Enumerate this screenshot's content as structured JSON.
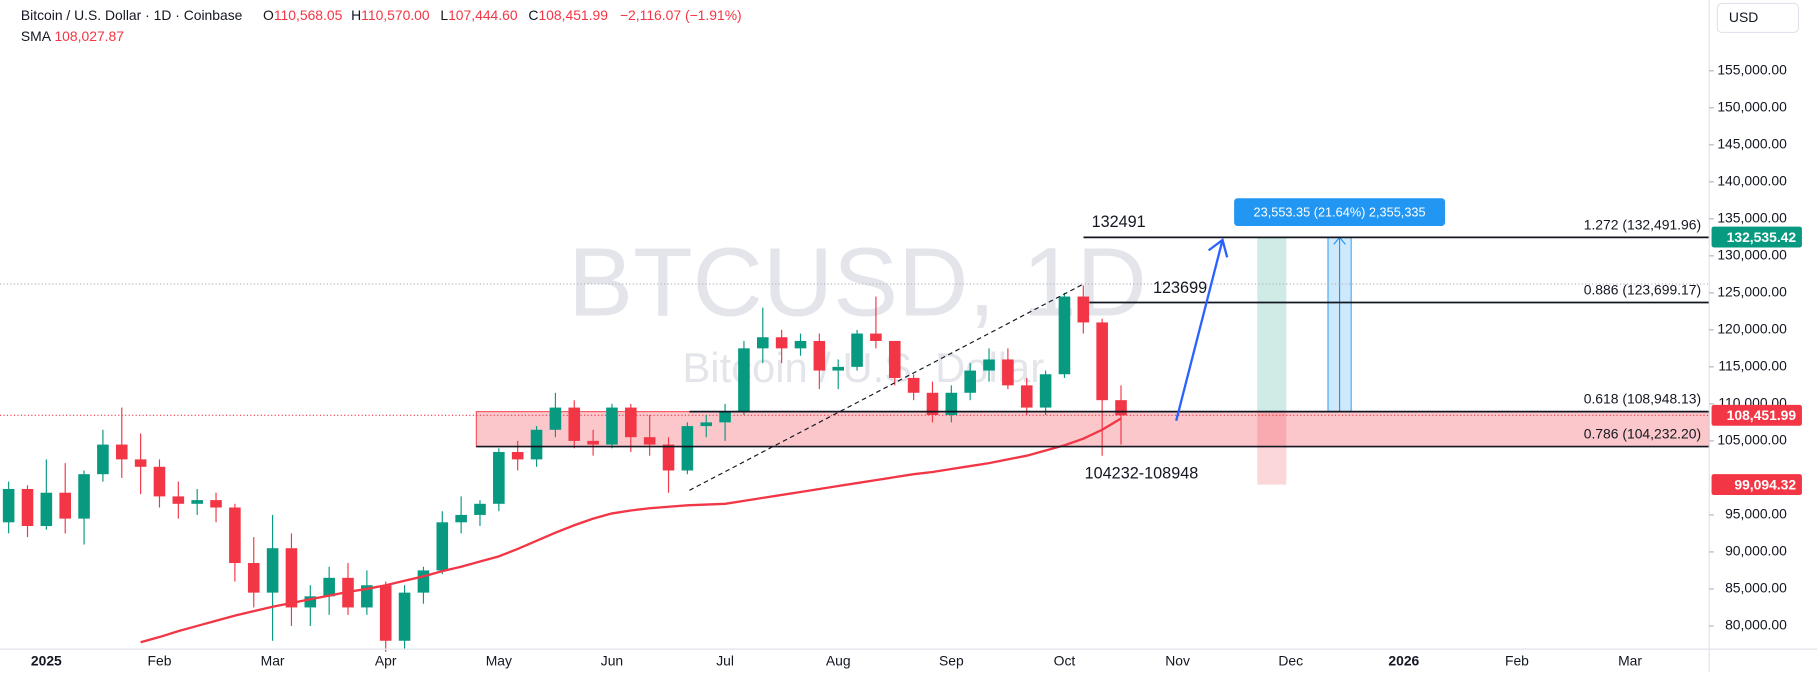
{
  "header": {
    "symbol": "Bitcoin / U.S. Dollar · 1D · Coinbase",
    "o_label": "O",
    "o_value": "110,568.05",
    "h_label": "H",
    "h_value": "110,570.00",
    "l_label": "L",
    "l_value": "107,444.60",
    "c_label": "C",
    "c_value": "108,451.99",
    "change": "−2,116.07 (−1.91%)",
    "sma_value": "108,027.87"
  },
  "currency_button": "USD",
  "watermark": {
    "symbol": "BTCUSD, 1D",
    "name": "Bitcoin / U.S. Dollar"
  },
  "annotations": {
    "target": "132491",
    "high": "123699",
    "zone": "104232-108948"
  },
  "measure": {
    "label": "23,553.35 (21.64%) 2,355,335"
  },
  "chart_data": {
    "type": "candlestick",
    "up_color": "#089981",
    "down_color": "#f23645",
    "categories": [
      null,
      null,
      "2025",
      null,
      null,
      null,
      null,
      null,
      "Feb",
      null,
      null,
      null,
      null,
      null,
      "Mar",
      null,
      null,
      null,
      null,
      null,
      "Apr",
      null,
      null,
      null,
      null,
      null,
      "May",
      null,
      null,
      null,
      null,
      null,
      "Jun",
      null,
      null,
      null,
      null,
      null,
      "Jul",
      null,
      null,
      null,
      null,
      null,
      "Aug",
      null,
      null,
      null,
      null,
      null,
      "Sep",
      null,
      null,
      null,
      null,
      null,
      "Oct",
      null,
      null,
      null,
      null,
      null,
      "Nov",
      null,
      null,
      null,
      null,
      null,
      "Dec",
      null,
      null,
      null,
      null,
      null,
      "2026",
      null,
      null,
      null,
      null,
      null,
      "Feb",
      null,
      null,
      null,
      null,
      null,
      "Mar",
      null
    ],
    "open": [
      94000,
      98500,
      93500,
      98000,
      94500,
      100500,
      104500,
      102500,
      101500,
      97500,
      96500,
      97000,
      96000,
      88500,
      84500,
      90500,
      82500,
      84000,
      86500,
      82500,
      85500,
      78000,
      84500,
      87500,
      94000,
      95000,
      96500,
      103500,
      102500,
      106500,
      109500,
      105000,
      104500,
      109500,
      105500,
      104500,
      101000,
      107000,
      107500,
      109000,
      117500,
      119000,
      117500,
      118500,
      114500,
      115000,
      119500,
      118500,
      113500,
      111500,
      108500,
      111500,
      114500,
      116000,
      112500,
      109500,
      114000,
      124500,
      121000,
      110500,
      null,
      null,
      null,
      null,
      null,
      null,
      null,
      null,
      null,
      null,
      null,
      null,
      null,
      null,
      null,
      null,
      null,
      null,
      null,
      null,
      null,
      null,
      null,
      null,
      null,
      null,
      null,
      null
    ],
    "high": [
      99500,
      99000,
      102500,
      102000,
      101000,
      106500,
      109500,
      106000,
      102500,
      99500,
      98500,
      98000,
      96500,
      92000,
      95000,
      92500,
      85500,
      88000,
      88500,
      87500,
      86000,
      85500,
      88000,
      95500,
      97500,
      97000,
      104000,
      105000,
      107000,
      111500,
      110500,
      106500,
      110000,
      110000,
      108500,
      105500,
      107500,
      108500,
      110000,
      118500,
      123000,
      120000,
      119500,
      119500,
      116000,
      120000,
      124500,
      118500,
      114000,
      113000,
      112500,
      115500,
      117500,
      117500,
      113500,
      114500,
      125000,
      126000,
      121500,
      112500,
      null,
      null,
      null,
      null,
      null,
      null,
      null,
      null,
      null,
      null,
      null,
      null,
      null,
      null,
      null,
      null,
      null,
      null,
      null,
      null,
      null,
      null,
      null,
      null,
      null,
      null,
      null,
      null
    ],
    "low": [
      92500,
      92000,
      93000,
      92500,
      91000,
      99500,
      100000,
      97800,
      96000,
      94500,
      95000,
      94000,
      86000,
      82500,
      78000,
      80000,
      80000,
      81500,
      81500,
      81500,
      76500,
      76800,
      83000,
      87000,
      92500,
      93500,
      95500,
      101000,
      101500,
      105500,
      104000,
      103000,
      104000,
      103500,
      103000,
      98000,
      100500,
      105500,
      105000,
      108500,
      115500,
      115500,
      116500,
      112000,
      112000,
      114500,
      117500,
      112500,
      110500,
      107500,
      107500,
      110500,
      113000,
      112000,
      108500,
      108500,
      113500,
      119500,
      103000,
      104500,
      null,
      null,
      null,
      null,
      null,
      null,
      null,
      null,
      null,
      null,
      null,
      null,
      null,
      null,
      null,
      null,
      null,
      null,
      null,
      null,
      null,
      null,
      null,
      null,
      null,
      null,
      null,
      null
    ],
    "close": [
      98500,
      93500,
      98000,
      94500,
      100500,
      104500,
      102500,
      101500,
      97500,
      96500,
      97000,
      96000,
      88500,
      84500,
      90500,
      82500,
      84000,
      86500,
      82500,
      85500,
      78000,
      84500,
      87500,
      94000,
      95000,
      96500,
      103500,
      102500,
      106500,
      109500,
      105000,
      104500,
      109500,
      105500,
      104500,
      101000,
      107000,
      107500,
      109000,
      117500,
      119000,
      117500,
      118500,
      114500,
      115000,
      119500,
      118500,
      113500,
      111500,
      108500,
      111500,
      114500,
      116000,
      112500,
      109500,
      114000,
      124500,
      121000,
      110500,
      108451.99,
      null,
      null,
      null,
      null,
      null,
      null,
      null,
      null,
      null,
      null,
      null,
      null,
      null,
      null,
      null,
      null,
      null,
      null,
      null,
      null,
      null,
      null,
      null,
      null,
      null,
      null,
      null,
      null
    ],
    "sma": {
      "name": "SMA",
      "color": "#f23645",
      "values": [
        null,
        null,
        null,
        null,
        null,
        null,
        null,
        77800,
        78500,
        79300,
        80000,
        80700,
        81400,
        82000,
        82600,
        83100,
        83600,
        84100,
        84600,
        85000,
        85500,
        86100,
        86700,
        87400,
        88000,
        88700,
        89400,
        90400,
        91500,
        92600,
        93600,
        94500,
        95200,
        95600,
        95900,
        96100,
        96300,
        96400,
        96500,
        96900,
        97300,
        97700,
        98100,
        98500,
        98900,
        99300,
        99700,
        100100,
        100500,
        100800,
        101200,
        101600,
        102000,
        102500,
        103000,
        103700,
        104400,
        105300,
        106500,
        108027.87,
        null,
        null,
        null,
        null,
        null,
        null,
        null,
        null,
        null,
        null,
        null,
        null,
        null,
        null,
        null,
        null,
        null,
        null,
        null,
        null,
        null,
        null,
        null,
        null,
        null,
        null,
        null,
        null
      ]
    },
    "ylim": [
      76870,
      164560
    ],
    "yticks": [
      {
        "value": 80000,
        "label": "80,000.00"
      },
      {
        "value": 85000,
        "label": "85,000.00"
      },
      {
        "value": 90000,
        "label": "90,000.00"
      },
      {
        "value": 95000,
        "label": "95,000.00"
      },
      {
        "value": 105000,
        "label": "105,000.00"
      },
      {
        "value": 110000,
        "label": "110,000.00"
      },
      {
        "value": 115000,
        "label": "115,000.00"
      },
      {
        "value": 120000,
        "label": "120,000.00"
      },
      {
        "value": 125000,
        "label": "125,000.00"
      },
      {
        "value": 130000,
        "label": "130,000.00"
      },
      {
        "value": 135000,
        "label": "135,000.00"
      },
      {
        "value": 140000,
        "label": "140,000.00"
      },
      {
        "value": 145000,
        "label": "145,000.00"
      },
      {
        "value": 150000,
        "label": "150,000.00"
      },
      {
        "value": 155000,
        "label": "155,000.00"
      }
    ],
    "price_tags": [
      {
        "value": 132535.42,
        "label": "132,535.42",
        "color": "#089981"
      },
      {
        "value": 108451.99,
        "label": "108,451.99",
        "color": "#f23645"
      },
      {
        "value": 99094.32,
        "label": "99,094.32",
        "color": "#f23645"
      }
    ],
    "fib_levels": [
      {
        "value": 132491.96,
        "label": "1.272 (132,491.96)"
      },
      {
        "value": 123699.17,
        "label": "0.886 (123,699.17)"
      },
      {
        "value": 108948.13,
        "label": "0.618 (108,948.13)"
      },
      {
        "value": 104232.2,
        "label": "0.786 (104,232.20)"
      }
    ]
  }
}
